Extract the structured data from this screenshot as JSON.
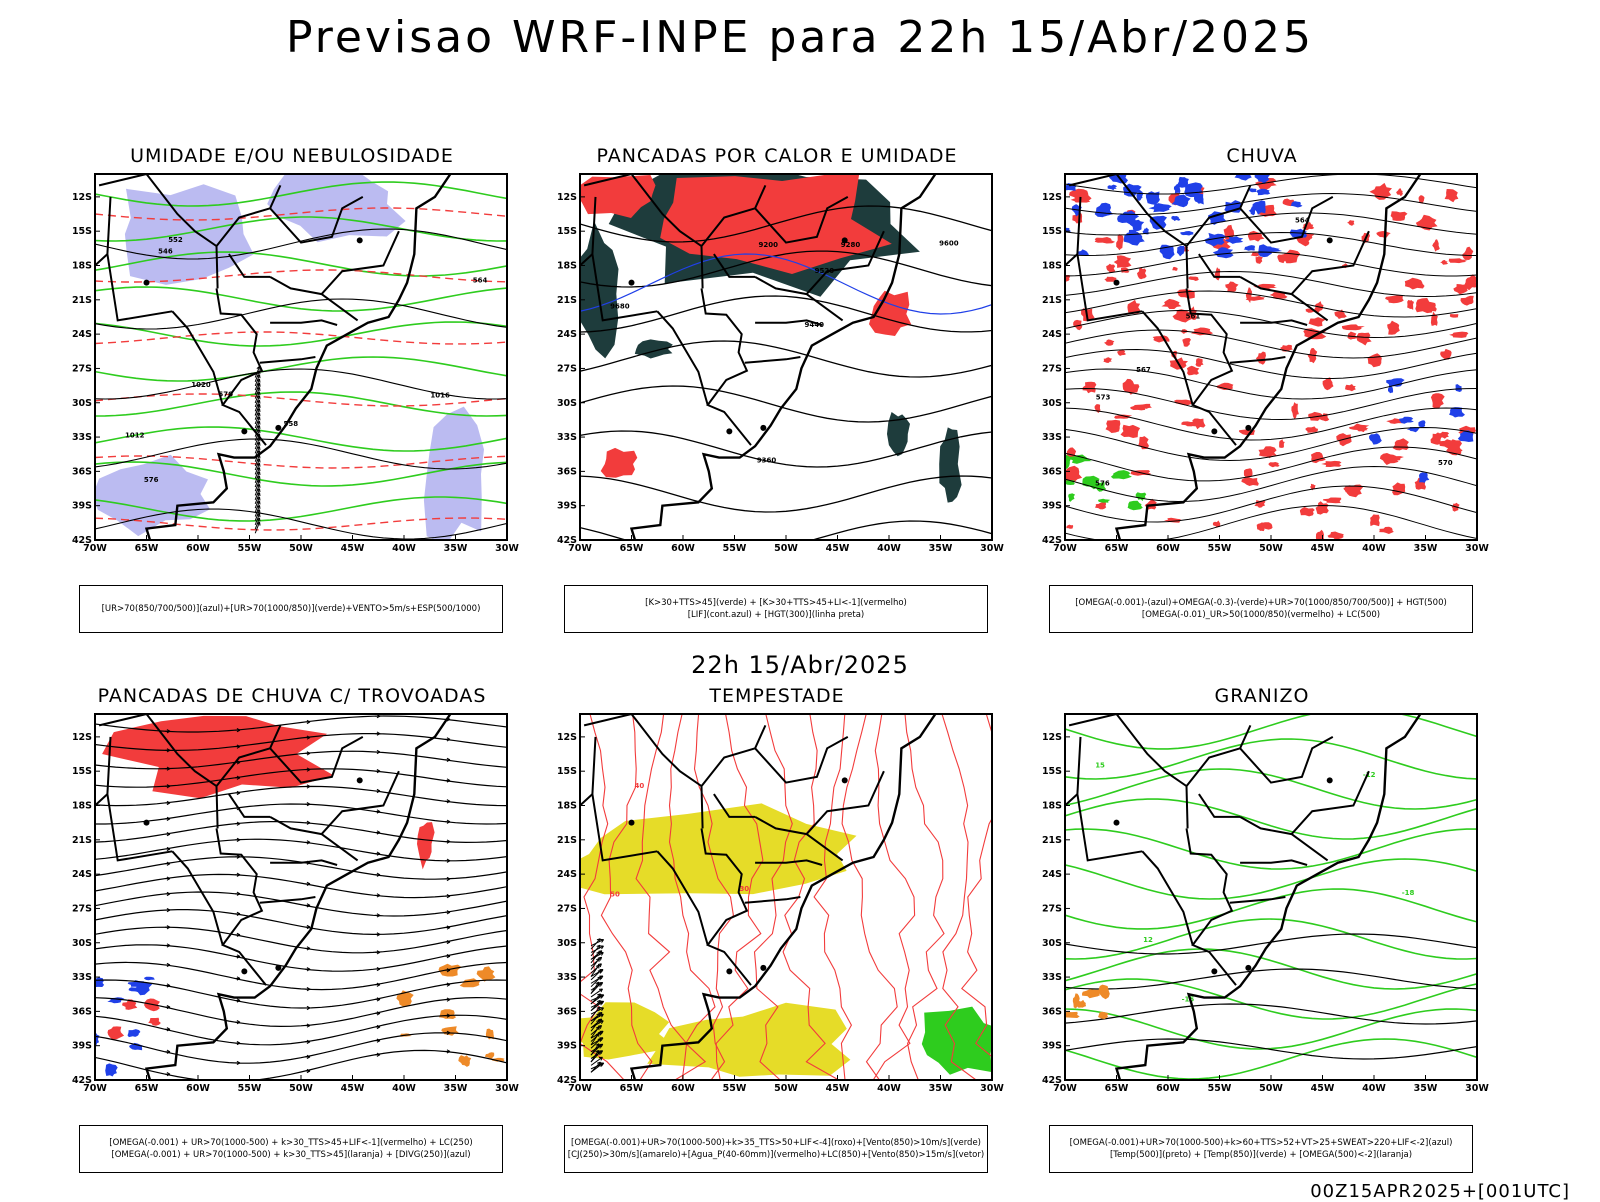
{
  "header": {
    "title": "Previsao WRF-INPE  para 22h 15/Abr/2025",
    "middle_label": "22h 15/Abr/2025",
    "footer_stamp": "00Z15APR2025+[001UTC]"
  },
  "axes": {
    "lat_labels": [
      "12S",
      "15S",
      "18S",
      "21S",
      "24S",
      "27S",
      "30S",
      "33S",
      "36S",
      "39S",
      "42S"
    ],
    "lon_labels": [
      "70W",
      "65W",
      "60W",
      "55W",
      "50W",
      "45W",
      "40W",
      "35W",
      "30W"
    ]
  },
  "colors": {
    "red": "#f23c3c",
    "green": "#2ecc1e",
    "blue": "#2040e8",
    "lavender": "#b4b4f0",
    "darkteal": "#1e3c3c",
    "yellow": "#e6dc28",
    "orange": "#ee8a28",
    "black": "#000000"
  },
  "panels": [
    {
      "id": "umidade",
      "title": "UMIDADE E/OU NEBULOSIDADE",
      "legend": [
        "[UR>70(850/700/500)](azul)+[UR>70(1000/850)](verde)+VENTO>5m/s+ESP(500/1000)"
      ],
      "contour_labels": [
        "1012",
        "1016",
        "1020",
        "564",
        "570",
        "576",
        "558",
        "552",
        "546"
      ]
    },
    {
      "id": "pancadas-calor",
      "title": "PANCADAS POR CALOR E UMIDADE",
      "legend": [
        "[K>30+TTS>45](verde) + [K>30+TTS>45+LI<-1](vermelho)",
        "[LIF](cont.azul) + [HGT(300)](linha preta)"
      ],
      "contour_labels": [
        "9680",
        "9600",
        "9520",
        "9440",
        "9360",
        "9280",
        "9200"
      ]
    },
    {
      "id": "chuva",
      "title": "CHUVA",
      "legend": [
        "[OMEGA(-0.001)-(azul)+OMEGA(-0.3)-(verde)+UR>70(1000/850/700/500)] + HGT(500)",
        "[OMEGA(-0.01)_UR>50(1000/850)(vermelho) + LC(500)"
      ],
      "contour_labels": [
        "576",
        "573",
        "570",
        "567",
        "564",
        "561"
      ]
    },
    {
      "id": "trovoadas",
      "title": "PANCADAS DE CHUVA C/ TROVOADAS",
      "legend": [
        "[OMEGA(-0.001) + UR>70(1000-500) + k>30_TTS>45+LIF<-1](vermelho) + LC(250)",
        "[OMEGA(-0.001) + UR>70(1000-500) + k>30_TTS>45](laranja) + [DIVG(250)](azul)"
      ],
      "contour_labels": []
    },
    {
      "id": "tempestade",
      "title": "TEMPESTADE",
      "legend": [
        "[OMEGA(-0.001)+UR>70(1000-500)+k>35_TTS>50+LIF<-4](roxo)+[Vento(850)>10m/s](verde)",
        "[CJ(250)>30m/s](amarelo)+[Agua_P(40-60mm)](vermelho)+LC(850)+[Vento(850)>15m/s](vetor)"
      ],
      "contour_labels": [
        "50",
        "40",
        "30"
      ]
    },
    {
      "id": "granizo",
      "title": "GRANIZO",
      "legend": [
        "[OMEGA(-0.001)+UR>70(1000-500)+k>60+TTS>52+VT>25+SWEAT>220+LIF<-2](azul)",
        "[Temp(500)](preto) + [Temp(850)](verde) + [OMEGA(500)<-2](laranja)"
      ],
      "contour_labels": [
        "15",
        "12",
        "-12",
        "-15",
        "-18"
      ]
    }
  ]
}
